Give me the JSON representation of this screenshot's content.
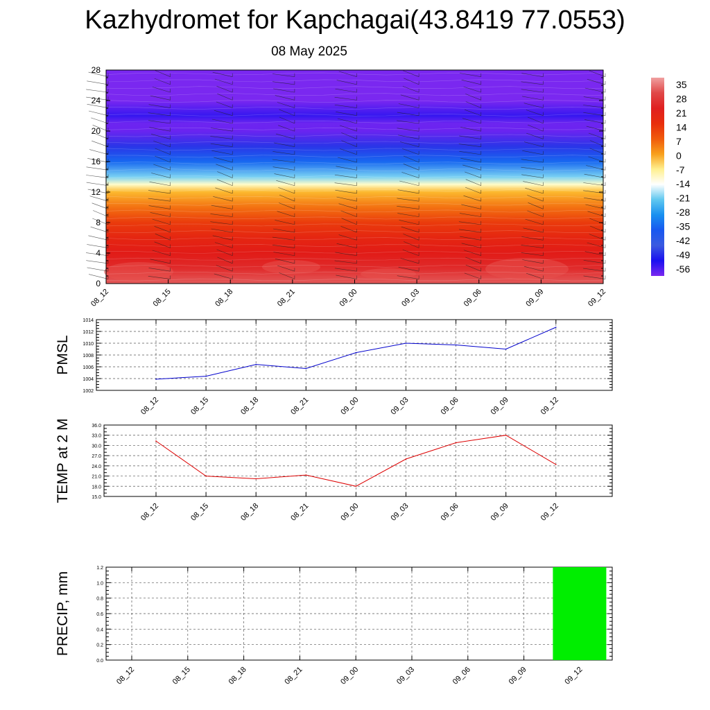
{
  "title": "Kazhydromet for Kapchagai(43.8419 77.0553)",
  "subtitle": "08 May 2025",
  "time_labels": [
    "08_12",
    "08_15",
    "08_18",
    "08_21",
    "09_00",
    "09_03",
    "09_06",
    "09_09",
    "09_12"
  ],
  "chart_data": [
    {
      "type": "heatmap",
      "name": "temperature-cross-section",
      "ylim": [
        0,
        28
      ],
      "y_ticks": [
        "0",
        "4",
        "8",
        "12",
        "16",
        "20",
        "24",
        "28"
      ],
      "x_ticks": [
        "08_12",
        "08_15",
        "08_18",
        "08_21",
        "09_00",
        "09_03",
        "09_06",
        "09_09",
        "09_12"
      ],
      "profile_levels": [
        0,
        2,
        4,
        6,
        8,
        10,
        12,
        13,
        14,
        16,
        18,
        20,
        21,
        22,
        24,
        28
      ],
      "profile_values": [
        30,
        26,
        23,
        19,
        14,
        7,
        0,
        -10,
        -20,
        -33,
        -46,
        -56,
        -57,
        -52,
        -62,
        -62
      ],
      "colorbar": {
        "labels": [
          "35",
          "28",
          "21",
          "14",
          "7",
          "0",
          "-7",
          "-14",
          "-21",
          "-28",
          "-35",
          "-42",
          "-49",
          "-56"
        ],
        "colors": [
          "#f0a0a0",
          "#e04848",
          "#e02020",
          "#e82e0c",
          "#f05a0c",
          "#f8a01c",
          "#fff090",
          "#ffffff",
          "#60c8f0",
          "#1890f0",
          "#1858f0",
          "#3a5ae0",
          "#1a10f0",
          "#7a28f0"
        ]
      }
    },
    {
      "type": "line",
      "name": "PMSL",
      "ylabel": "PMSL",
      "color": "#0000cc",
      "ylim": [
        1002,
        1014
      ],
      "y_ticks": [
        "1002",
        "1004",
        "1006",
        "1008",
        "1010",
        "1012",
        "1014"
      ],
      "x": [
        "08_12",
        "08_15",
        "08_18",
        "08_21",
        "09_00",
        "09_03",
        "09_06",
        "09_09",
        "09_12"
      ],
      "values": [
        1003.9,
        1004.4,
        1006.4,
        1005.7,
        1008.4,
        1010.0,
        1009.7,
        1009.0,
        1012.7
      ]
    },
    {
      "type": "line",
      "name": "TEMP at 2 M",
      "ylabel": "TEMP at 2 M",
      "color": "#dd0000",
      "ylim": [
        15,
        36
      ],
      "y_ticks": [
        "15.0",
        "18.0",
        "21.0",
        "24.0",
        "27.0",
        "30.0",
        "33.0",
        "36.0"
      ],
      "x": [
        "08_12",
        "08_15",
        "08_18",
        "08_21",
        "09_00",
        "09_03",
        "09_06",
        "09_09",
        "09_12"
      ],
      "values": [
        31.3,
        21.0,
        20.2,
        21.3,
        18.0,
        26.0,
        30.8,
        33.0,
        24.4
      ]
    },
    {
      "type": "bar",
      "name": "PRECIP",
      "ylabel": "PRECIP, mm",
      "color": "#00ee00",
      "ylim": [
        0,
        1.2
      ],
      "y_ticks": [
        "0.0",
        "0.2",
        "0.4",
        "0.6",
        "0.8",
        "1.0",
        "1.2"
      ],
      "x": [
        "08_12",
        "08_15",
        "08_18",
        "08_21",
        "09_00",
        "09_03",
        "09_06",
        "09_09",
        "09_12"
      ],
      "values": [
        0,
        0,
        0,
        0,
        0,
        0,
        0,
        0,
        1.2
      ]
    }
  ]
}
